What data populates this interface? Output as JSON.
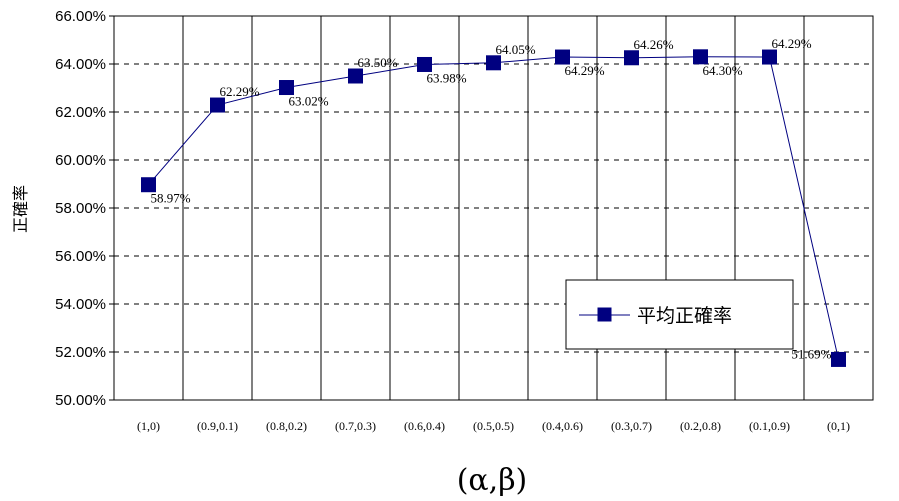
{
  "chart_data": {
    "type": "line",
    "categories": [
      "(1,0)",
      "(0.9,0.1)",
      "(0.8,0.2)",
      "(0.7,0.3)",
      "(0.6,0.4)",
      "(0.5,0.5)",
      "(0.4,0.6)",
      "(0.3,0.7)",
      "(0.2,0.8)",
      "(0.1,0.9)",
      "(0,1)"
    ],
    "series": [
      {
        "name": "平均正確率",
        "values": [
          58.97,
          62.29,
          63.02,
          63.5,
          63.98,
          64.05,
          64.29,
          64.26,
          64.3,
          64.29,
          51.69
        ],
        "labels": [
          "58.97%",
          "62.29%",
          "63.02%",
          "63.50%",
          "63.98%",
          "64.05%",
          "64.29%",
          "64.26%",
          "64.30%",
          "64.29%",
          "51.69%"
        ],
        "color": "#000080"
      }
    ],
    "yticks": [
      50,
      52,
      54,
      56,
      58,
      60,
      62,
      64,
      66
    ],
    "ytick_labels": [
      "50.00%",
      "52.00%",
      "54.00%",
      "56.00%",
      "58.00%",
      "60.00%",
      "62.00%",
      "64.00%",
      "66.00%"
    ],
    "ylim": [
      50,
      66
    ],
    "ylabel": "正確率",
    "xlabel": "(α,β)",
    "grid": {
      "x": "solid",
      "y": "dashed"
    },
    "legend_position": "lower-right"
  }
}
